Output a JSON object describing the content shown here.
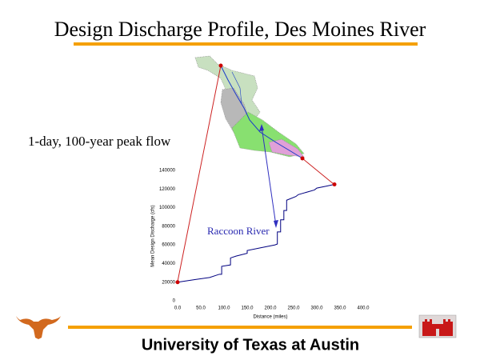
{
  "title": "Design Discharge Profile, Des Moines River",
  "subtitle": "1-day, 100-year peak flow",
  "footer": "University of Texas at Austin",
  "chart_data": {
    "type": "line",
    "x_label": "Distance (miles)",
    "y_label": "Mean Design Discharge (cfs)",
    "annotations": [
      "Raccoon River"
    ],
    "x": [
      0,
      40,
      69,
      90,
      95,
      95,
      114,
      114,
      126,
      150,
      150,
      180,
      210,
      215,
      215,
      222,
      222,
      229,
      229,
      235,
      235,
      255,
      260,
      295,
      300,
      320,
      338
    ],
    "series": [
      {
        "name": "Des Moines River",
        "color": "#000080",
        "marker_color": "#cc0000",
        "values": [
          20000,
          23000,
          25000,
          28500,
          28500,
          37000,
          38500,
          46000,
          48000,
          51000,
          54000,
          57000,
          60000,
          61000,
          74000,
          74000,
          87000,
          87000,
          97000,
          97000,
          108000,
          112000,
          114000,
          119000,
          121000,
          123000,
          125000
        ]
      }
    ],
    "xlim": [
      0,
      400
    ],
    "ylim": [
      0,
      140000
    ],
    "xticks": [
      {
        "value": 0,
        "label": "0.0"
      },
      {
        "value": 50,
        "label": "50.0"
      },
      {
        "value": 100,
        "label": "100.0"
      },
      {
        "value": 150,
        "label": "150.0"
      },
      {
        "value": 200,
        "label": "200.0"
      },
      {
        "value": 250,
        "label": "250.0"
      },
      {
        "value": 300,
        "label": "300.0"
      },
      {
        "value": 350,
        "label": "350.0"
      },
      {
        "value": 400,
        "label": "400.0"
      }
    ],
    "yticks": [
      0,
      20000,
      40000,
      60000,
      80000,
      100000,
      120000,
      140000
    ],
    "grid": false
  }
}
